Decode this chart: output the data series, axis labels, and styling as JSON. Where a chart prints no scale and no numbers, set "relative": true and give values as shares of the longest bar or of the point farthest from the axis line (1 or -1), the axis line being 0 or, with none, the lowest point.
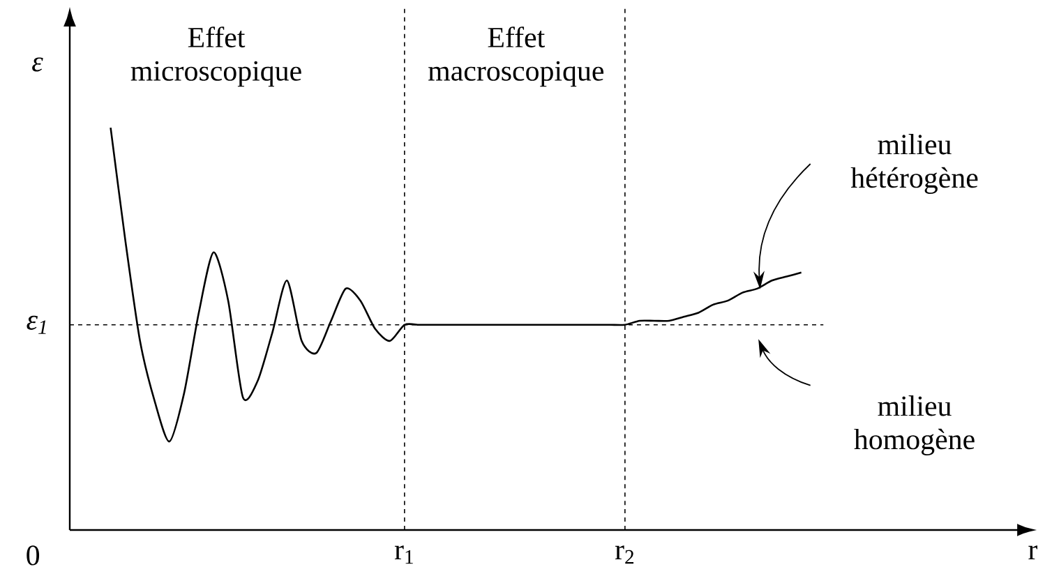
{
  "chart_data": {
    "type": "line",
    "relative": true,
    "ylabel": "ε",
    "categories": [
      null,
      null,
      null,
      null,
      null,
      null,
      null,
      null,
      null,
      null,
      null,
      null,
      null,
      null,
      null,
      null,
      null,
      null,
      null,
      null,
      "r$_{1}$",
      null,
      null,
      null,
      null,
      null,
      null,
      null,
      null,
      null,
      null,
      null,
      null,
      null,
      null,
      "r$_{2}$",
      null,
      null,
      null,
      null,
      null,
      null,
      null,
      null,
      null,
      null,
      null,
      null
    ],
    "ref_lines": [
      {
        "axis": "y",
        "value": 0.51,
        "label": "ε$_{1}$",
        "line_style": "dashed"
      }
    ],
    "annotations": [
      "Effet microscopique",
      "Effet macroscopique",
      "milieu hétérogène",
      "milieu homogène",
      "0",
      "r"
    ],
    "series": [
      {
        "color": "#000000",
        "values": [
          1.0,
          0.72,
          0.47,
          0.32,
          0.22,
          0.34,
          0.54,
          0.69,
          0.57,
          0.33,
          0.37,
          0.49,
          0.62,
          0.47,
          0.44,
          0.52,
          0.6,
          0.57,
          0.5,
          0.47,
          0.51,
          0.51,
          0.51,
          0.51,
          0.51,
          0.51,
          0.51,
          0.51,
          0.51,
          0.51,
          0.51,
          0.51,
          0.51,
          0.51,
          0.51,
          0.51,
          0.52,
          0.52,
          0.52,
          0.53,
          0.54,
          0.56,
          0.57,
          0.59,
          0.6,
          0.62,
          0.63,
          0.64
        ]
      }
    ]
  }
}
